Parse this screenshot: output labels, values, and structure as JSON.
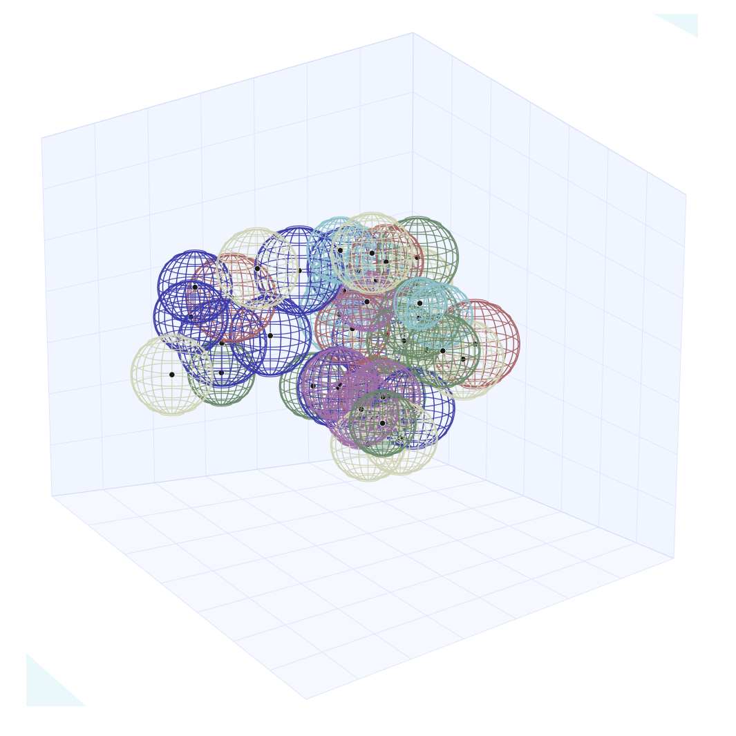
{
  "scene": {
    "type": "3d-wireframe-sphere-packing",
    "colors": {
      "background": "#ffffff",
      "pane": "#eef3ff",
      "grid": "#dfe6fb",
      "center": "#1a1a1a",
      "corner_tint": "#e9f7fb"
    },
    "sphere_colors": {
      "blue": "#3b3ba8",
      "red": "#a86464",
      "green": "#6a8a6a",
      "cream": "#cfd3b4",
      "lightblue": "#8fc1cc",
      "purple": "#a070a8"
    },
    "spheres": [
      {
        "id": 1,
        "color": "blue",
        "center": [
          3.2,
          2.0,
          6.3
        ],
        "radius": 1.1
      },
      {
        "id": 2,
        "color": "red",
        "center": [
          1.5,
          4.5,
          4.7
        ],
        "radius": 1.2
      },
      {
        "id": 3,
        "color": "green",
        "center": [
          6.0,
          1.0,
          3.4
        ],
        "radius": 0.9
      },
      {
        "id": 4,
        "color": "cream",
        "center": [
          7.3,
          0.9,
          3.5
        ],
        "radius": 1.1
      },
      {
        "id": 5,
        "color": "lightblue",
        "center": [
          3.8,
          3.2,
          6.8
        ],
        "radius": 1.2
      },
      {
        "id": 6,
        "color": "purple",
        "center": [
          3.4,
          1.9,
          3.0
        ],
        "radius": 1.0
      },
      {
        "id": 7,
        "color": "cream",
        "center": [
          5.4,
          6.0,
          8.9
        ],
        "radius": 1.1
      },
      {
        "id": 8,
        "color": "lightblue",
        "center": [
          5.7,
          5.2,
          8.7
        ],
        "radius": 0.9
      },
      {
        "id": 9,
        "color": "green",
        "center": [
          3.3,
          4.8,
          7.7
        ],
        "radius": 1.1
      },
      {
        "id": 10,
        "color": "red",
        "center": [
          3.8,
          4.3,
          7.5
        ],
        "radius": 1.0
      },
      {
        "id": 11,
        "color": "blue",
        "center": [
          5.7,
          3.6,
          7.4
        ],
        "radius": 1.2
      },
      {
        "id": 12,
        "color": "cream",
        "center": [
          6.5,
          3.1,
          7.4
        ],
        "radius": 1.1
      },
      {
        "id": 13,
        "color": "blue",
        "center": [
          7.3,
          1.8,
          6.4
        ],
        "radius": 1.0
      },
      {
        "id": 14,
        "color": "red",
        "center": [
          6.5,
          2.1,
          6.1
        ],
        "radius": 1.2
      },
      {
        "id": 15,
        "color": "blue",
        "center": [
          7.2,
          1.5,
          5.4
        ],
        "radius": 1.0
      },
      {
        "id": 16,
        "color": "blue",
        "center": [
          5.5,
          2.2,
          4.9
        ],
        "radius": 1.1
      },
      {
        "id": 17,
        "color": "blue",
        "center": [
          6.2,
          1.3,
          4.4
        ],
        "radius": 1.2
      },
      {
        "id": 18,
        "color": "lightblue",
        "center": [
          3.2,
          5.5,
          6.3
        ],
        "radius": 0.9
      },
      {
        "id": 19,
        "color": "green",
        "center": [
          3.4,
          5.0,
          6.1
        ],
        "radius": 1.1
      },
      {
        "id": 20,
        "color": "green",
        "center": [
          3.1,
          5.5,
          5.3
        ],
        "radius": 1.0
      },
      {
        "id": 21,
        "color": "cream",
        "center": [
          2.4,
          5.3,
          4.8
        ],
        "radius": 1.1
      },
      {
        "id": 22,
        "color": "cream",
        "center": [
          2.6,
          4.2,
          4.7
        ],
        "radius": 1.0
      },
      {
        "id": 23,
        "color": "blue",
        "center": [
          3.2,
          2.8,
          4.6
        ],
        "radius": 1.0
      },
      {
        "id": 24,
        "color": "lightblue",
        "center": [
          3.8,
          2.5,
          5.3
        ],
        "radius": 1.1
      },
      {
        "id": 25,
        "color": "lightblue",
        "center": [
          3.9,
          2.8,
          6.1
        ],
        "radius": 1.0
      },
      {
        "id": 26,
        "color": "lightblue",
        "center": [
          3.5,
          3.5,
          6.6
        ],
        "radius": 1.1
      },
      {
        "id": 27,
        "color": "cream",
        "center": [
          3.0,
          4.3,
          6.7
        ],
        "radius": 1.0
      },
      {
        "id": 28,
        "color": "cream",
        "center": [
          3.2,
          3.5,
          5.0
        ],
        "radius": 1.0
      },
      {
        "id": 29,
        "color": "green",
        "center": [
          3.1,
          4.0,
          5.0
        ],
        "radius": 1.0
      },
      {
        "id": 30,
        "color": "red",
        "center": [
          3.8,
          3.0,
          5.1
        ],
        "radius": 1.0
      },
      {
        "id": 31,
        "color": "purple",
        "center": [
          4.0,
          2.8,
          3.5
        ],
        "radius": 1.0
      },
      {
        "id": 32,
        "color": "purple",
        "center": [
          3.3,
          2.6,
          2.4
        ],
        "radius": 0.9
      },
      {
        "id": 33,
        "color": "lightblue",
        "center": [
          2.9,
          2.5,
          2.2
        ],
        "radius": 0.9
      },
      {
        "id": 34,
        "color": "green",
        "center": [
          4.1,
          1.9,
          3.1
        ],
        "radius": 0.9
      },
      {
        "id": 35,
        "color": "blue",
        "center": [
          2.9,
          4.1,
          3.1
        ],
        "radius": 1.1
      },
      {
        "id": 36,
        "color": "green",
        "center": [
          3.1,
          3.4,
          3.2
        ],
        "radius": 1.0
      },
      {
        "id": 37,
        "color": "red",
        "center": [
          3.2,
          3.1,
          3.2
        ],
        "radius": 1.0
      },
      {
        "id": 38,
        "color": "cream",
        "center": [
          3.2,
          4.0,
          2.3
        ],
        "radius": 1.0
      },
      {
        "id": 39,
        "color": "cream",
        "center": [
          3.8,
          3.6,
          2.1
        ],
        "radius": 1.0
      },
      {
        "id": 40,
        "color": "blue",
        "center": [
          3.9,
          2.6,
          3.3
        ],
        "radius": 1.1
      },
      {
        "id": 41,
        "color": "purple",
        "center": [
          4.2,
          3.9,
          3.3
        ],
        "radius": 1.0
      },
      {
        "id": 42,
        "color": "purple",
        "center": [
          3.6,
          3.9,
          3.5
        ],
        "radius": 1.0
      },
      {
        "id": 43,
        "color": "green",
        "center": [
          3.9,
          4.3,
          3.0
        ],
        "radius": 0.9
      },
      {
        "id": 44,
        "color": "lightblue",
        "center": [
          4.3,
          6.3,
          7.3
        ],
        "radius": 0.7
      },
      {
        "id": 45,
        "color": "purple",
        "center": [
          4.9,
          5.1,
          7.0
        ],
        "radius": 0.8
      }
    ]
  }
}
